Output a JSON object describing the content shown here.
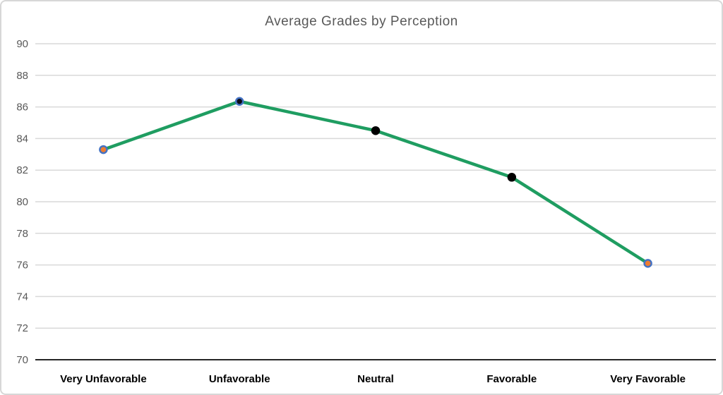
{
  "title": "Average Grades by Perception",
  "chart_data": {
    "type": "line",
    "title": "Average Grades by Perception",
    "categories": [
      "Very Unfavorable",
      "Unfavorable",
      "Neutral",
      "Favorable",
      "Very Favorable"
    ],
    "values": [
      83.3,
      86.35,
      84.5,
      81.55,
      76.1
    ],
    "ylim": [
      70,
      90
    ],
    "ytick_step": 2,
    "yticks": [
      70,
      72,
      74,
      76,
      78,
      80,
      82,
      84,
      86,
      88,
      90
    ],
    "grid": true,
    "legend": "none",
    "xlabel": "",
    "ylabel": "",
    "colors": {
      "line": "#1f9d61",
      "axis": "#262626",
      "gridline": "#d9d9d9",
      "tick_label": "#595959",
      "x_label": "#000000",
      "title": "#595959"
    },
    "markers": [
      {
        "fill": "#ed7d31",
        "stroke": "#4472c4"
      },
      {
        "fill": "#0a0a14",
        "stroke": "#4472c4"
      },
      {
        "fill": "#000000",
        "stroke": "#000000"
      },
      {
        "fill": "#000000",
        "stroke": "#000000"
      },
      {
        "fill": "#ed7d31",
        "stroke": "#4472c4"
      }
    ]
  }
}
